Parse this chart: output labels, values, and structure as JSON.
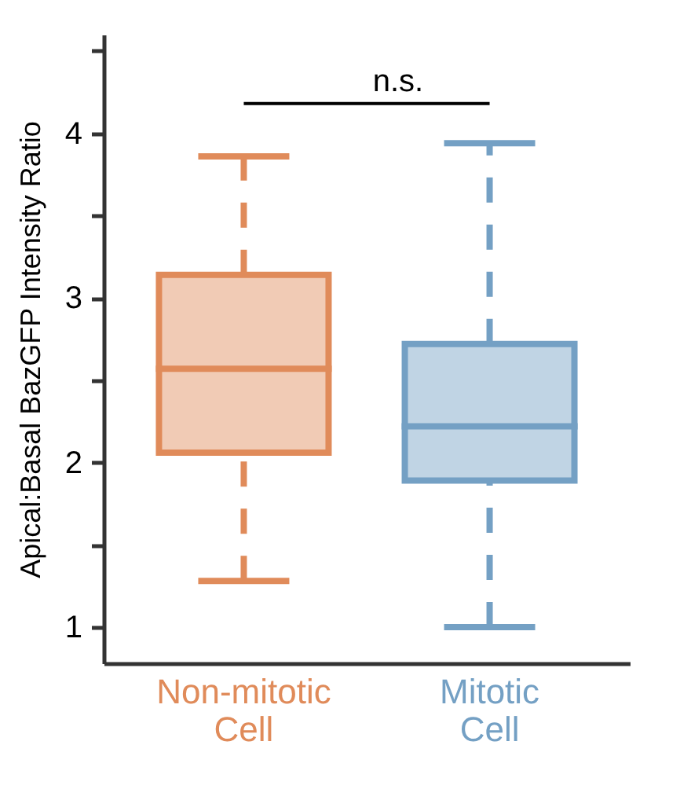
{
  "chart_data": {
    "type": "box",
    "ylabel": "Apical:Basal BazGFP Intensity Ratio",
    "categories": [
      "Non-mitotic Cell",
      "Mitotic Cell"
    ],
    "colors": [
      "#e08b5a",
      "#74a0c4"
    ],
    "boxes": [
      {
        "low": 1.28,
        "q1": 2.06,
        "median": 2.57,
        "q3": 3.14,
        "high": 3.86
      },
      {
        "low": 1.0,
        "q1": 1.89,
        "median": 2.22,
        "q3": 2.72,
        "high": 3.94
      }
    ],
    "ylim": [
      0.78,
      4.6
    ],
    "yticks": [
      1,
      {
        "value": 1.5,
        "label": null
      },
      2,
      {
        "value": 2.5,
        "label": null
      },
      3,
      {
        "value": 3.5,
        "label": null
      },
      4,
      {
        "value": 4.5,
        "label": null
      }
    ],
    "grid": false,
    "annotations": [
      "n.s."
    ]
  }
}
